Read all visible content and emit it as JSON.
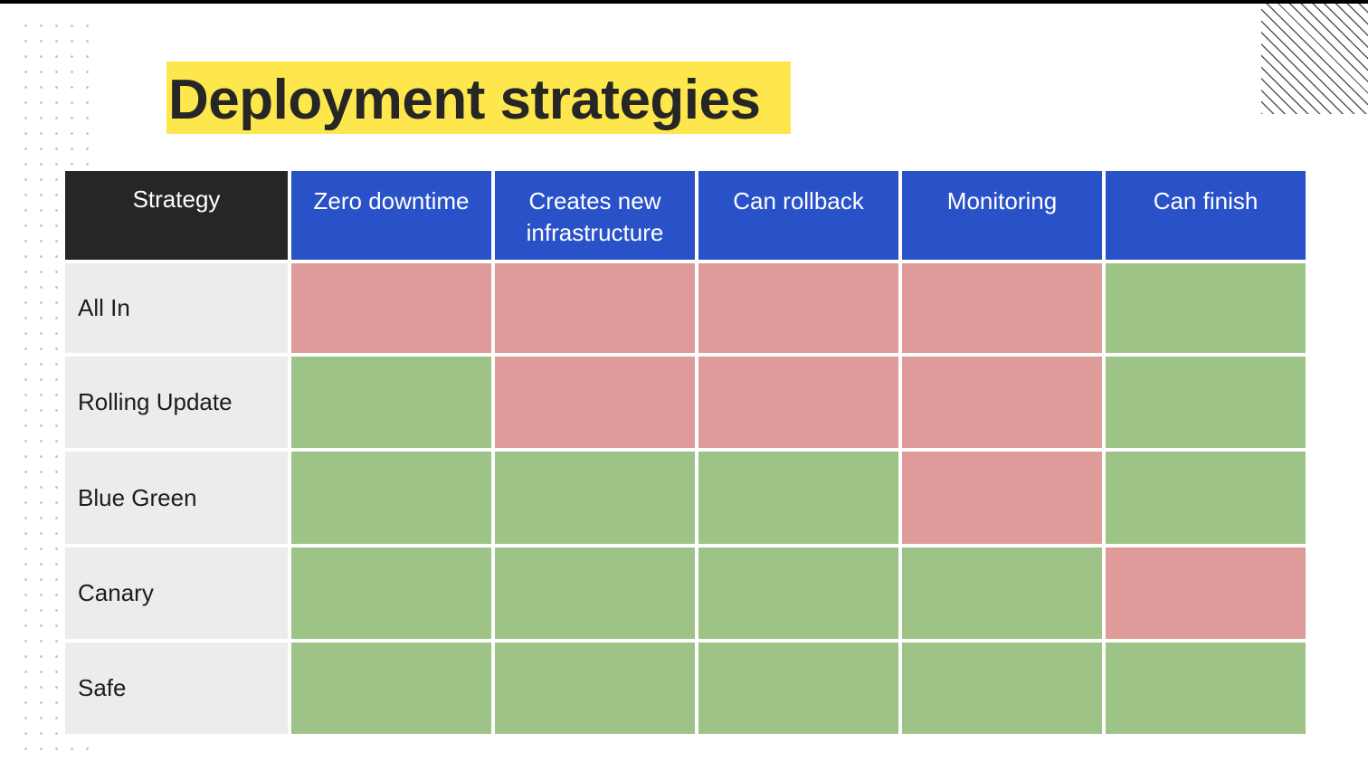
{
  "slide": {
    "title": "Deployment strategies"
  },
  "colors": {
    "title_highlight": "#fde74c",
    "header_strategy_bg": "#262626",
    "header_bg": "#2a52c8",
    "row_header_bg": "#ececec",
    "yes": "#9ec386",
    "no": "#de9b99"
  },
  "table": {
    "corner_header": "Strategy",
    "columns": [
      "Zero downtime",
      "Creates new infrastructure",
      "Can rollback",
      "Monitoring",
      "Can finish"
    ],
    "rows": [
      {
        "label": "All In",
        "values": [
          "no",
          "no",
          "no",
          "no",
          "yes"
        ]
      },
      {
        "label": "Rolling Update",
        "values": [
          "yes",
          "no",
          "no",
          "no",
          "yes"
        ]
      },
      {
        "label": "Blue Green",
        "values": [
          "yes",
          "yes",
          "yes",
          "no",
          "yes"
        ]
      },
      {
        "label": "Canary",
        "values": [
          "yes",
          "yes",
          "yes",
          "yes",
          "no"
        ]
      },
      {
        "label": "Safe",
        "values": [
          "yes",
          "yes",
          "yes",
          "yes",
          "yes"
        ]
      }
    ]
  }
}
